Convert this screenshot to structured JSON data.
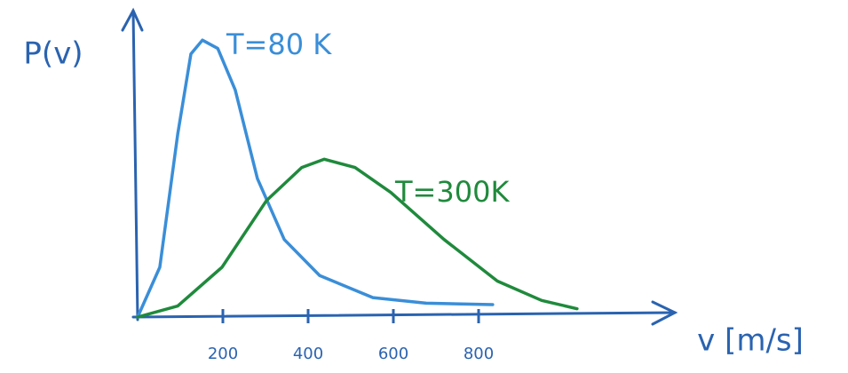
{
  "chart_data": {
    "type": "line",
    "y_label": "P(v)",
    "x_label": "v [m/s]",
    "xlim": [
      0,
      1250
    ],
    "xticks": [
      200,
      400,
      600,
      800
    ],
    "ylim": [
      0,
      1.1
    ],
    "series": [
      {
        "name": "T=80 K",
        "color": "#3a8ed8",
        "x": [
          0,
          52,
          94,
          125,
          152,
          188,
          229,
          281,
          344,
          427,
          552,
          677,
          833
        ],
        "values": [
          0,
          0.18,
          0.66,
          0.95,
          1.0,
          0.97,
          0.82,
          0.5,
          0.28,
          0.15,
          0.07,
          0.05,
          0.045
        ]
      },
      {
        "name": "T=300K",
        "color": "#1f8a3c",
        "x": [
          0,
          94,
          198,
          302,
          385,
          438,
          510,
          594,
          719,
          844,
          948,
          1031
        ],
        "values": [
          0,
          0.04,
          0.18,
          0.42,
          0.54,
          0.57,
          0.54,
          0.45,
          0.28,
          0.13,
          0.06,
          0.03
        ]
      }
    ]
  }
}
